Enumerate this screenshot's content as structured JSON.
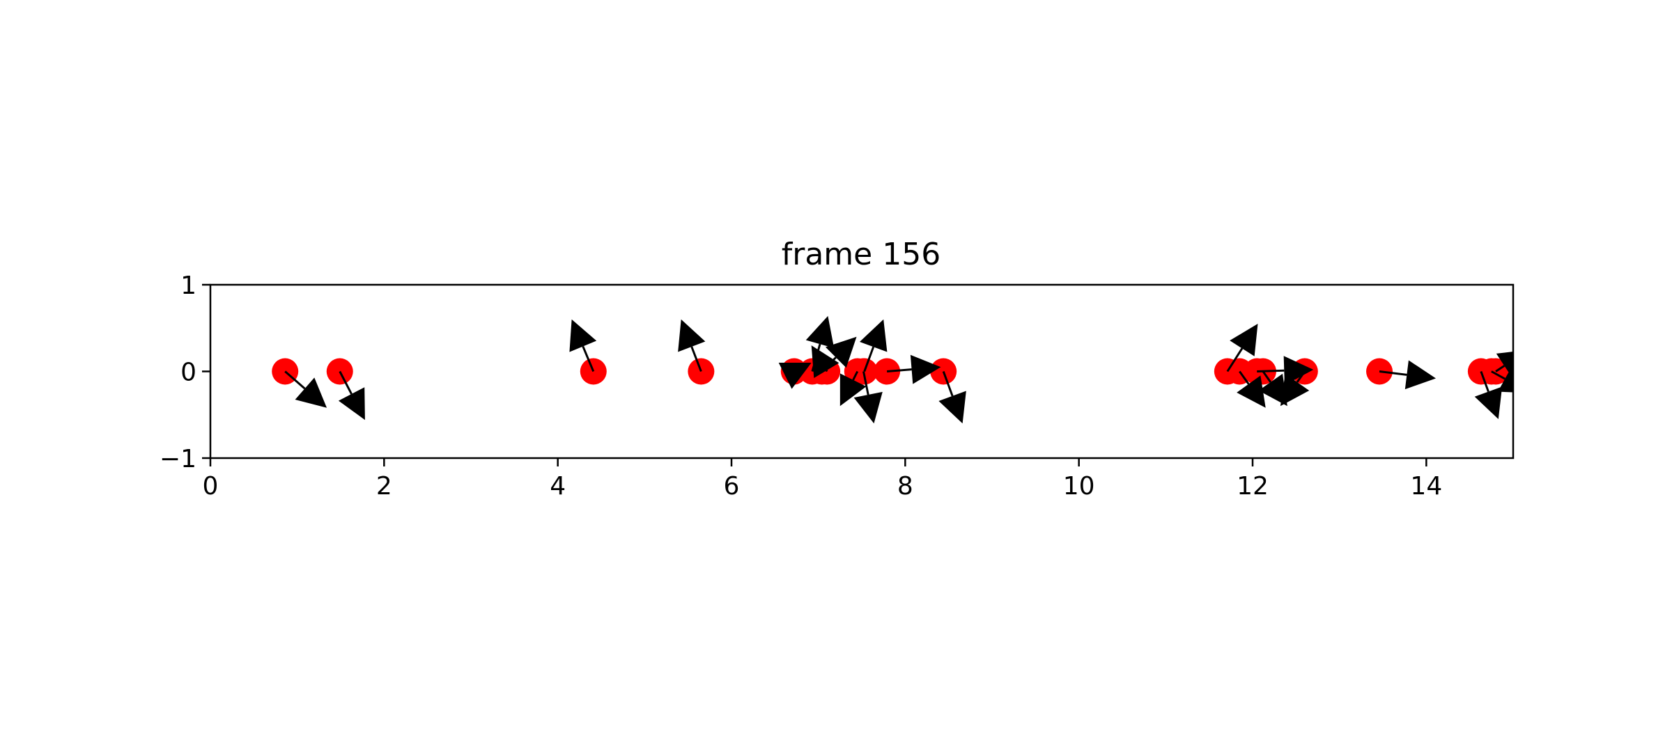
{
  "chart_data": {
    "type": "scatter",
    "title": "frame 156",
    "xlabel": "",
    "ylabel": "",
    "xlim": [
      0,
      15
    ],
    "ylim": [
      -1,
      1
    ],
    "xticks": [
      0,
      2,
      4,
      6,
      8,
      10,
      12,
      14
    ],
    "xtick_labels": [
      "0",
      "2",
      "4",
      "6",
      "8",
      "10",
      "12",
      "14"
    ],
    "yticks": [
      -1,
      0,
      1
    ],
    "ytick_labels": [
      "−1",
      "0",
      "1"
    ],
    "grid": false,
    "marker_color": "#ff0000",
    "arrow_color": "#000000",
    "points": [
      {
        "x": 0.86,
        "y": 0,
        "dx": 0.48,
        "dy": -0.42
      },
      {
        "x": 1.49,
        "y": 0,
        "dx": 0.29,
        "dy": -0.56
      },
      {
        "x": 4.41,
        "y": 0,
        "dx": -0.25,
        "dy": 0.6
      },
      {
        "x": 5.65,
        "y": 0,
        "dx": -0.23,
        "dy": 0.6
      },
      {
        "x": 6.72,
        "y": 0,
        "dx": 0.2,
        "dy": 0.1
      },
      {
        "x": 6.93,
        "y": 0,
        "dx": 0.18,
        "dy": 0.64
      },
      {
        "x": 7.04,
        "y": 0,
        "dx": 0.4,
        "dy": 0.4
      },
      {
        "x": 7.1,
        "y": 0,
        "dx": -0.18,
        "dy": 0.3
      },
      {
        "x": 7.45,
        "y": 0,
        "dx": -0.2,
        "dy": -0.4
      },
      {
        "x": 7.52,
        "y": 0,
        "dx": 0.12,
        "dy": -0.6
      },
      {
        "x": 7.53,
        "y": 0,
        "dx": 0.22,
        "dy": 0.6
      },
      {
        "x": 7.79,
        "y": 0,
        "dx": 0.62,
        "dy": 0.05
      },
      {
        "x": 8.44,
        "y": 0,
        "dx": 0.22,
        "dy": -0.6
      },
      {
        "x": 11.71,
        "y": 0,
        "dx": 0.35,
        "dy": 0.55
      },
      {
        "x": 11.85,
        "y": 0,
        "dx": 0.3,
        "dy": -0.42
      },
      {
        "x": 12.05,
        "y": 0,
        "dx": 0.65,
        "dy": 0.02
      },
      {
        "x": 12.12,
        "y": 0,
        "dx": 0.28,
        "dy": -0.4
      },
      {
        "x": 12.6,
        "y": 0,
        "dx": -0.28,
        "dy": -0.4
      },
      {
        "x": 13.46,
        "y": 0,
        "dx": 0.65,
        "dy": -0.08
      },
      {
        "x": 14.63,
        "y": 0,
        "dx": 0.2,
        "dy": -0.55
      },
      {
        "x": 14.75,
        "y": 0,
        "dx": 0.45,
        "dy": -0.25
      },
      {
        "x": 14.8,
        "y": 0,
        "dx": 0.38,
        "dy": 0.25
      }
    ]
  }
}
